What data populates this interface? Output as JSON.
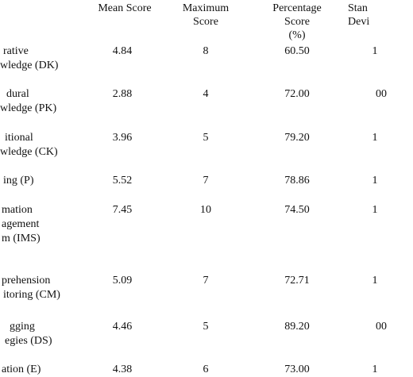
{
  "table": {
    "headers": {
      "mean": [
        "Mean Score"
      ],
      "max": [
        "Maximum",
        "Score"
      ],
      "pct": [
        "Percentage",
        "Score",
        "(%)"
      ],
      "sd": [
        "Stan",
        "Devi"
      ]
    },
    "rows": [
      {
        "label": [
          "rative",
          "wledge (DK)"
        ],
        "mean": "4.84",
        "max": "8",
        "pct": "60.50",
        "sd": "1"
      },
      {
        "label": [
          "dural",
          "wledge (PK)"
        ],
        "mean": "2.88",
        "max": "4",
        "pct": "72.00",
        "sd": "00"
      },
      {
        "label": [
          "itional",
          "wledge (CK)"
        ],
        "mean": "3.96",
        "max": "5",
        "pct": "79.20",
        "sd": "1"
      },
      {
        "label": [
          "ing (P)"
        ],
        "mean": "5.52",
        "max": "7",
        "pct": "78.86",
        "sd": "1"
      },
      {
        "label": [
          "mation",
          "agement",
          "m (IMS)"
        ],
        "mean": "7.45",
        "max": "10",
        "pct": "74.50",
        "sd": "1"
      },
      {
        "label": [
          "prehension",
          "itoring (CM)"
        ],
        "mean": "5.09",
        "max": "7",
        "pct": "72.71",
        "sd": "1"
      },
      {
        "label": [
          "gging",
          "egies (DS)"
        ],
        "mean": "4.46",
        "max": "5",
        "pct": "89.20",
        "sd": "00"
      },
      {
        "label": [
          "ation (E)"
        ],
        "mean": "4.38",
        "max": "6",
        "pct": "73.00",
        "sd": "1"
      }
    ]
  }
}
